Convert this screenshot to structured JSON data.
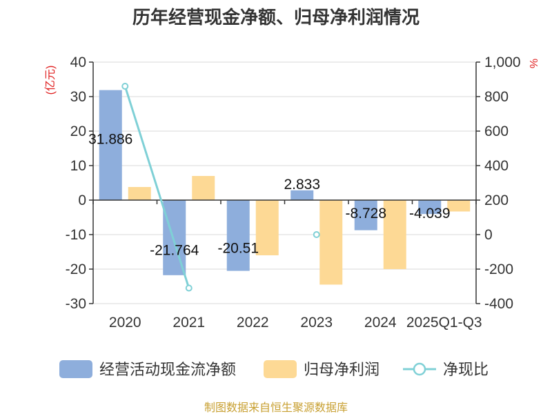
{
  "chart_data": {
    "type": "bar",
    "title": "历年经营现金净额、归母净利润情况",
    "categories": [
      "2020",
      "2021",
      "2022",
      "2023",
      "2024",
      "2025Q1-Q3"
    ],
    "y_left": {
      "unit": "(亿元)",
      "ylim": [
        -30,
        40
      ],
      "ticks": [
        "40",
        "30",
        "20",
        "10",
        "0",
        "-10",
        "-20",
        "-30"
      ]
    },
    "y_right": {
      "unit": "%",
      "ylim": [
        -400,
        1000
      ],
      "ticks": [
        "1,000",
        "800",
        "600",
        "400",
        "200",
        "0",
        "-200",
        "-400"
      ]
    },
    "series": [
      {
        "name": "经营活动现金流净额",
        "type": "bar",
        "axis": "left",
        "color": "#8eaedc",
        "values": [
          31.886,
          -21.764,
          -20.51,
          2.833,
          -8.728,
          -4.039
        ],
        "labels": [
          "31.886",
          "-21.764",
          "-20.51",
          "2.833",
          "-8.728",
          "-4.039"
        ]
      },
      {
        "name": "归母净利润",
        "type": "bar",
        "axis": "left",
        "color": "#fdd995",
        "values": [
          3.8,
          7.0,
          -16.0,
          -24.5,
          -20.0,
          -3.3
        ]
      },
      {
        "name": "净现比",
        "type": "line",
        "axis": "right",
        "color": "#7fd0d6",
        "values": [
          860,
          -310,
          null,
          0,
          null,
          null
        ]
      }
    ],
    "grid": true,
    "legend": "bottom",
    "source": "制图数据来自恒生聚源数据库"
  }
}
